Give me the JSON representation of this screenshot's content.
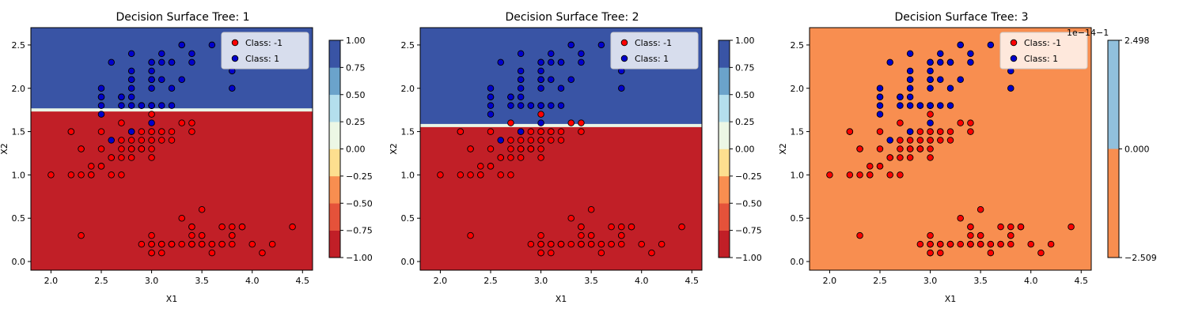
{
  "figure": {
    "charts": [
      {
        "title": "Decision Surface Tree: 1",
        "xlabel": "X1",
        "ylabel": "X2",
        "threshold": 1.75,
        "colorbar": {
          "kind": "discrete",
          "ticks": [
            "1.00",
            "0.75",
            "0.50",
            "0.25",
            "0.00",
            "−0.25",
            "−0.50",
            "−0.75",
            "−1.00"
          ]
        }
      },
      {
        "title": "Decision Surface Tree: 2",
        "xlabel": "X1",
        "ylabel": "X2",
        "threshold": 1.57,
        "colorbar": {
          "kind": "discrete",
          "ticks": [
            "1.00",
            "0.75",
            "0.50",
            "0.25",
            "0.00",
            "−0.25",
            "−0.50",
            "−0.75",
            "−1.00"
          ]
        }
      },
      {
        "title": "Decision Surface Tree: 3",
        "xlabel": "X1",
        "ylabel": "X2",
        "threshold": null,
        "colorbar": {
          "kind": "two",
          "ticks": [
            "2.498",
            "0.000",
            "−2.509"
          ],
          "offset_text": "1e−14−1"
        }
      }
    ],
    "legend": [
      "Class: -1",
      "Class: 1"
    ]
  },
  "colors": {
    "class_neg": "#ff0000",
    "class_pos": "#0000cc",
    "region_neg": "#c11f27",
    "region_pos": "#3954a5",
    "boundary": "#e9f5e7",
    "tree3_region": "#f88e50",
    "colorbar_levels": [
      "#c11f27",
      "#e5523a",
      "#f88e50",
      "#fddf8f",
      "#ecf7e5",
      "#b4dfed",
      "#6ba3cb",
      "#3954a5"
    ],
    "tree3_colorbar": [
      "#f88e50",
      "#91c0dd"
    ]
  },
  "chart_data": {
    "type": "scatter",
    "xlim": [
      1.8,
      4.6
    ],
    "ylim": [
      -0.1,
      2.7
    ],
    "xticks": [
      2.0,
      2.5,
      3.0,
      3.5,
      4.0,
      4.5
    ],
    "yticks": [
      0.0,
      0.5,
      1.0,
      1.5,
      2.0,
      2.5
    ],
    "series": [
      {
        "name": "Class: -1",
        "points": [
          [
            3.5,
            0.2
          ],
          [
            3.0,
            0.2
          ],
          [
            3.2,
            0.2
          ],
          [
            3.1,
            0.2
          ],
          [
            3.6,
            0.2
          ],
          [
            3.9,
            0.4
          ],
          [
            3.4,
            0.3
          ],
          [
            3.4,
            0.2
          ],
          [
            2.9,
            0.2
          ],
          [
            3.1,
            0.1
          ],
          [
            3.7,
            0.2
          ],
          [
            3.4,
            0.2
          ],
          [
            3.0,
            0.1
          ],
          [
            3.0,
            0.1
          ],
          [
            4.0,
            0.2
          ],
          [
            4.4,
            0.4
          ],
          [
            3.9,
            0.4
          ],
          [
            3.5,
            0.3
          ],
          [
            3.8,
            0.3
          ],
          [
            3.8,
            0.3
          ],
          [
            3.4,
            0.2
          ],
          [
            3.7,
            0.4
          ],
          [
            3.6,
            0.2
          ],
          [
            3.3,
            0.5
          ],
          [
            3.4,
            0.2
          ],
          [
            3.0,
            0.2
          ],
          [
            3.4,
            0.4
          ],
          [
            3.5,
            0.2
          ],
          [
            3.4,
            0.2
          ],
          [
            3.2,
            0.2
          ],
          [
            3.1,
            0.2
          ],
          [
            3.4,
            0.4
          ],
          [
            4.1,
            0.1
          ],
          [
            4.2,
            0.2
          ],
          [
            3.1,
            0.2
          ],
          [
            3.2,
            0.2
          ],
          [
            3.5,
            0.2
          ],
          [
            3.6,
            0.1
          ],
          [
            3.0,
            0.2
          ],
          [
            3.4,
            0.2
          ],
          [
            3.5,
            0.3
          ],
          [
            2.3,
            0.3
          ],
          [
            3.2,
            0.2
          ],
          [
            3.5,
            0.6
          ],
          [
            3.8,
            0.4
          ],
          [
            3.0,
            0.3
          ],
          [
            3.8,
            0.2
          ],
          [
            3.2,
            0.2
          ],
          [
            3.7,
            0.2
          ],
          [
            3.3,
            0.2
          ],
          [
            3.2,
            1.4
          ],
          [
            3.2,
            1.5
          ],
          [
            3.1,
            1.5
          ],
          [
            2.3,
            1.3
          ],
          [
            2.8,
            1.5
          ],
          [
            2.8,
            1.3
          ],
          [
            3.3,
            1.6
          ],
          [
            2.4,
            1.0
          ],
          [
            2.9,
            1.3
          ],
          [
            2.7,
            1.4
          ],
          [
            2.0,
            1.0
          ],
          [
            3.0,
            1.5
          ],
          [
            2.2,
            1.0
          ],
          [
            2.9,
            1.4
          ],
          [
            2.9,
            1.3
          ],
          [
            3.1,
            1.4
          ],
          [
            3.0,
            1.5
          ],
          [
            2.7,
            1.0
          ],
          [
            2.2,
            1.5
          ],
          [
            2.5,
            1.1
          ],
          [
            2.8,
            1.3
          ],
          [
            2.5,
            1.5
          ],
          [
            2.8,
            1.2
          ],
          [
            2.9,
            1.3
          ],
          [
            3.0,
            1.4
          ],
          [
            2.8,
            1.4
          ],
          [
            3.0,
            1.7
          ],
          [
            2.9,
            1.5
          ],
          [
            2.6,
            1.0
          ],
          [
            2.4,
            1.1
          ],
          [
            2.4,
            1.0
          ],
          [
            2.7,
            1.2
          ],
          [
            3.4,
            1.5
          ],
          [
            3.1,
            1.5
          ],
          [
            2.3,
            1.3
          ],
          [
            3.0,
            1.3
          ],
          [
            2.5,
            1.3
          ],
          [
            2.6,
            1.2
          ],
          [
            3.0,
            1.4
          ],
          [
            2.6,
            1.2
          ],
          [
            2.3,
            1.0
          ],
          [
            2.7,
            1.3
          ],
          [
            3.0,
            1.2
          ],
          [
            2.9,
            1.3
          ],
          [
            2.9,
            1.3
          ],
          [
            2.5,
            1.1
          ],
          [
            2.8,
            1.3
          ],
          [
            2.2,
            1.5
          ],
          [
            2.7,
            1.6
          ],
          [
            3.4,
            1.6
          ]
        ]
      },
      {
        "name": "Class: 1",
        "points": [
          [
            3.3,
            2.5
          ],
          [
            2.7,
            1.9
          ],
          [
            3.0,
            2.1
          ],
          [
            2.9,
            1.8
          ],
          [
            3.0,
            2.2
          ],
          [
            3.0,
            2.1
          ],
          [
            2.5,
            1.7
          ],
          [
            2.9,
            1.8
          ],
          [
            2.5,
            1.8
          ],
          [
            3.6,
            2.5
          ],
          [
            3.2,
            2.0
          ],
          [
            2.7,
            1.9
          ],
          [
            3.0,
            2.1
          ],
          [
            2.5,
            2.0
          ],
          [
            2.8,
            2.4
          ],
          [
            3.2,
            2.3
          ],
          [
            3.0,
            1.8
          ],
          [
            3.8,
            2.2
          ],
          [
            2.6,
            2.3
          ],
          [
            3.2,
            2.3
          ],
          [
            2.8,
            2.0
          ],
          [
            2.7,
            1.8
          ],
          [
            3.3,
            2.1
          ],
          [
            3.2,
            1.8
          ],
          [
            2.8,
            1.8
          ],
          [
            3.0,
            1.8
          ],
          [
            2.8,
            2.1
          ],
          [
            3.0,
            1.6
          ],
          [
            2.8,
            1.9
          ],
          [
            3.8,
            2.0
          ],
          [
            2.8,
            2.2
          ],
          [
            2.8,
            1.5
          ],
          [
            2.6,
            1.4
          ],
          [
            3.0,
            2.3
          ],
          [
            3.4,
            2.4
          ],
          [
            3.1,
            1.8
          ],
          [
            3.0,
            1.8
          ],
          [
            3.1,
            2.1
          ],
          [
            3.1,
            2.4
          ],
          [
            3.1,
            2.3
          ],
          [
            2.7,
            1.9
          ],
          [
            3.2,
            2.3
          ],
          [
            3.3,
            2.5
          ],
          [
            3.0,
            2.3
          ],
          [
            2.5,
            1.9
          ],
          [
            3.0,
            2.0
          ],
          [
            3.4,
            2.3
          ],
          [
            3.0,
            1.8
          ],
          [
            2.5,
            1.9
          ],
          [
            2.8,
            2.1
          ]
        ]
      }
    ]
  }
}
